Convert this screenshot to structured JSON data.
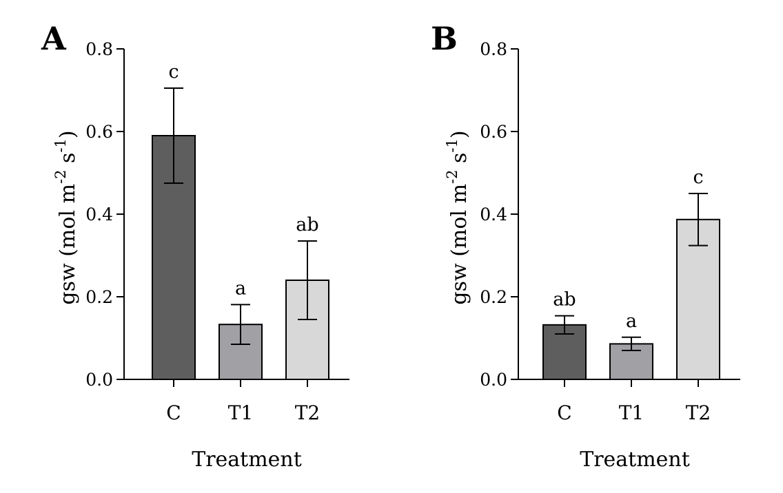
{
  "chart_data": [
    {
      "panel": "A",
      "type": "bar",
      "xlabel": "Treatment",
      "ylabel": {
        "main": "gsw (mol m",
        "sup1": "-2",
        "mid": " s",
        "sup2": "-1",
        "end": ")"
      },
      "ylim": [
        0,
        0.8
      ],
      "yticks": [
        "0.0",
        "0.2",
        "0.4",
        "0.6",
        "0.8"
      ],
      "categories": [
        "C",
        "T1",
        "T2"
      ],
      "values": [
        0.59,
        0.133,
        0.24
      ],
      "errors": [
        0.115,
        0.048,
        0.095
      ],
      "letters": [
        "c",
        "a",
        "ab"
      ],
      "colors": [
        "#5e5e5e",
        "#a0a0a5",
        "#d8d8d8"
      ]
    },
    {
      "panel": "B",
      "type": "bar",
      "xlabel": "Treatment",
      "ylabel": {
        "main": "gsw (mol m",
        "sup1": "-2",
        "mid": " s",
        "sup2": "-1",
        "end": ")"
      },
      "ylim": [
        0,
        0.8
      ],
      "yticks": [
        "0.0",
        "0.2",
        "0.4",
        "0.6",
        "0.8"
      ],
      "categories": [
        "C",
        "T1",
        "T2"
      ],
      "values": [
        0.132,
        0.086,
        0.387
      ],
      "errors": [
        0.022,
        0.016,
        0.063
      ],
      "letters": [
        "ab",
        "a",
        "c"
      ],
      "colors": [
        "#5e5e5e",
        "#a0a0a5",
        "#d8d8d8"
      ]
    }
  ]
}
